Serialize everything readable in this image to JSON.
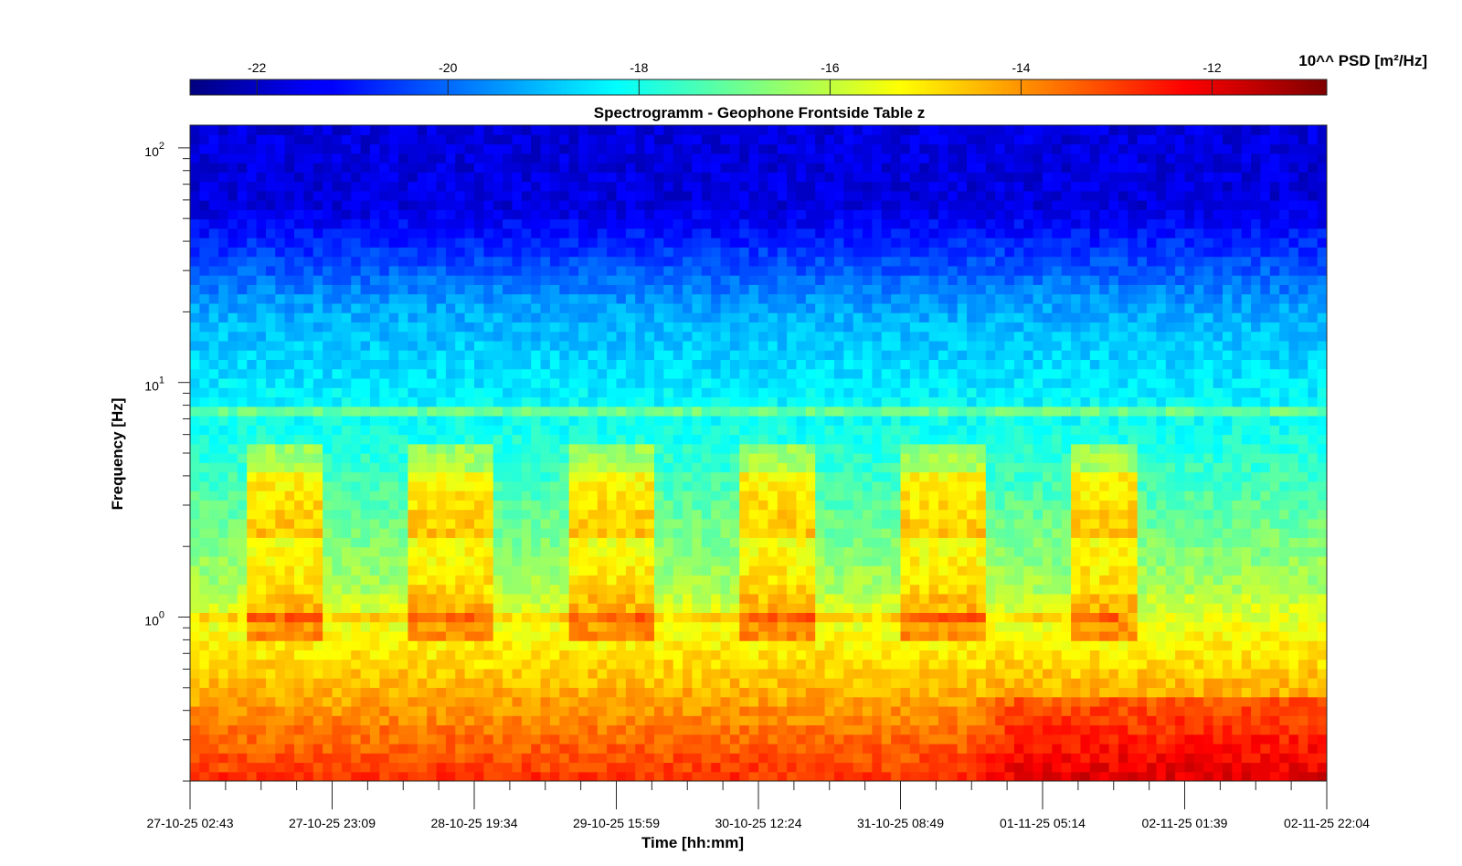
{
  "chart_data": {
    "type": "heatmap",
    "title": "Spectrogramm - Geophone Frontside Table z",
    "xlabel": "Time [hh:mm]",
    "ylabel": "Frequency [Hz]",
    "y_scale": "log",
    "ylim": [
      0.2,
      125
    ],
    "x_tick_labels": [
      "27-10-25 02:43",
      "27-10-25 23:09",
      "28-10-25 19:34",
      "29-10-25 15:59",
      "30-10-25 12:24",
      "31-10-25 08:49",
      "01-11-25 05:14",
      "02-11-25 01:39",
      "02-11-25 22:04"
    ],
    "y_ticks": [
      {
        "value": 1,
        "base": "10",
        "exp": "0"
      },
      {
        "value": 10,
        "base": "10",
        "exp": "1"
      },
      {
        "value": 100,
        "base": "10",
        "exp": "2"
      }
    ],
    "colorbar": {
      "label": "10^^ PSD [m²/Hz]",
      "range": [
        -22.7,
        -10.8
      ],
      "ticks": [
        -22,
        -20,
        -18,
        -16,
        -14,
        -12
      ],
      "colormap": "jet"
    },
    "grid": false
  }
}
